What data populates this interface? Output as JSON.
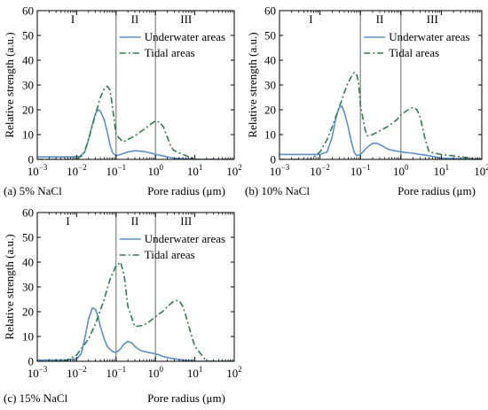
{
  "chart_data": [
    {
      "type": "line",
      "caption": "(a) 5% NaCl",
      "xlabel": "Pore radius (μm)",
      "ylabel": "Relative strength (a.u.)",
      "x_scale": "log",
      "xlim": [
        0.001,
        100
      ],
      "ylim": [
        0,
        60
      ],
      "x_ticks": [
        {
          "v": 0.001,
          "b": "10",
          "e": "−3"
        },
        {
          "v": 0.01,
          "b": "10",
          "e": "−2"
        },
        {
          "v": 0.1,
          "b": "10",
          "e": "−1"
        },
        {
          "v": 1,
          "b": "10",
          "e": "0"
        },
        {
          "v": 10,
          "b": "10",
          "e": "1"
        },
        {
          "v": 100,
          "b": "10",
          "e": "2"
        }
      ],
      "y_ticks": [
        0,
        10,
        20,
        30,
        40,
        50,
        60
      ],
      "dividers": [
        0.1,
        1
      ],
      "regions": [
        {
          "label": "I",
          "x": 0.008
        },
        {
          "label": "II",
          "x": 0.3
        },
        {
          "label": "III",
          "x": 6
        }
      ],
      "legend": "top-right",
      "series": [
        {
          "name": "Underwater areas",
          "color": "#5b8fc7",
          "dash": "solid",
          "x": [
            0.001,
            0.008,
            0.012,
            0.016,
            0.02,
            0.025,
            0.03,
            0.035,
            0.04,
            0.05,
            0.06,
            0.07,
            0.08,
            0.09,
            0.1,
            0.13,
            0.2,
            0.3,
            0.5,
            0.8,
            1,
            1.5,
            2,
            3,
            5,
            10,
            100
          ],
          "y": [
            1,
            1,
            1.2,
            3,
            8,
            14,
            18.5,
            20,
            19.5,
            16,
            11,
            6,
            3,
            2,
            1.5,
            2,
            3,
            3.5,
            3.2,
            2.5,
            2,
            1.5,
            1,
            0.5,
            0.3,
            0,
            0
          ]
        },
        {
          "name": "Tidal areas",
          "color": "#2e7d48",
          "dash": "dashdot",
          "x": [
            0.001,
            0.01,
            0.015,
            0.02,
            0.03,
            0.04,
            0.05,
            0.06,
            0.07,
            0.08,
            0.1,
            0.15,
            0.2,
            0.3,
            0.5,
            0.8,
            1,
            1.3,
            1.6,
            2,
            2.5,
            3,
            5,
            10,
            100
          ],
          "y": [
            0,
            0,
            2,
            8,
            18,
            25,
            28.5,
            29.5,
            28,
            22,
            10,
            7,
            8,
            9.5,
            12,
            14.5,
            15.5,
            15,
            13,
            9,
            5,
            3.5,
            2,
            0,
            0
          ]
        }
      ]
    },
    {
      "type": "line",
      "caption": "(b) 10% NaCl",
      "xlabel": "Pore radius (μm)",
      "ylabel": "Relative strength (a.u.)",
      "x_scale": "log",
      "xlim": [
        0.001,
        100
      ],
      "ylim": [
        0,
        60
      ],
      "x_ticks": [
        {
          "v": 0.001,
          "b": "10",
          "e": "−3"
        },
        {
          "v": 0.01,
          "b": "10",
          "e": "−2"
        },
        {
          "v": 0.1,
          "b": "10",
          "e": "−1"
        },
        {
          "v": 1,
          "b": "10",
          "e": "0"
        },
        {
          "v": 10,
          "b": "10",
          "e": "1"
        },
        {
          "v": 100,
          "b": "10",
          "e": "2"
        }
      ],
      "y_ticks": [
        0,
        10,
        20,
        30,
        40,
        50,
        60
      ],
      "dividers": [
        0.1,
        1
      ],
      "regions": [
        {
          "label": "I",
          "x": 0.006
        },
        {
          "label": "II",
          "x": 0.3
        },
        {
          "label": "III",
          "x": 6
        }
      ],
      "legend": "top-right",
      "series": [
        {
          "name": "Underwater areas",
          "color": "#5b8fc7",
          "dash": "solid",
          "x": [
            0.001,
            0.01,
            0.015,
            0.02,
            0.025,
            0.03,
            0.035,
            0.04,
            0.05,
            0.06,
            0.07,
            0.08,
            0.1,
            0.15,
            0.2,
            0.25,
            0.3,
            0.5,
            1,
            2,
            3,
            5,
            10,
            100
          ],
          "y": [
            2,
            2,
            3,
            9,
            17,
            21,
            21.5,
            19,
            13,
            7,
            3,
            1.5,
            2,
            5,
            6.5,
            6.5,
            6,
            4,
            3,
            2.5,
            2,
            1.5,
            0.5,
            0
          ]
        },
        {
          "name": "Tidal areas",
          "color": "#2e7d48",
          "dash": "dashdot",
          "x": [
            0.001,
            0.006,
            0.01,
            0.015,
            0.02,
            0.03,
            0.04,
            0.05,
            0.06,
            0.07,
            0.08,
            0.09,
            0.1,
            0.13,
            0.15,
            0.2,
            0.3,
            0.5,
            0.8,
            1,
            1.5,
            2,
            2.5,
            3,
            4,
            5,
            10,
            100
          ],
          "y": [
            0,
            0,
            3,
            8,
            13,
            21,
            27,
            31,
            33.5,
            35,
            34.5,
            31,
            22,
            12,
            9.5,
            10,
            11.5,
            13.5,
            16,
            18,
            20,
            21,
            20,
            17,
            8,
            3,
            2,
            0
          ]
        }
      ]
    },
    {
      "type": "line",
      "caption": "(c) 15% NaCl",
      "xlabel": "Pore radius (μm)",
      "ylabel": "Relative strength (a.u.)",
      "x_scale": "log",
      "xlim": [
        0.001,
        100
      ],
      "ylim": [
        0,
        60
      ],
      "x_ticks": [
        {
          "v": 0.001,
          "b": "10",
          "e": "−3"
        },
        {
          "v": 0.01,
          "b": "10",
          "e": "−2"
        },
        {
          "v": 0.1,
          "b": "10",
          "e": "−1"
        },
        {
          "v": 1,
          "b": "10",
          "e": "0"
        },
        {
          "v": 10,
          "b": "10",
          "e": "1"
        },
        {
          "v": 100,
          "b": "10",
          "e": "2"
        }
      ],
      "y_ticks": [
        0,
        10,
        20,
        30,
        40,
        50,
        60
      ],
      "dividers": [
        0.1,
        1
      ],
      "regions": [
        {
          "label": "I",
          "x": 0.006
        },
        {
          "label": "II",
          "x": 0.3
        },
        {
          "label": "III",
          "x": 6
        }
      ],
      "legend": "top-right",
      "series": [
        {
          "name": "Underwater areas",
          "color": "#5b8fc7",
          "dash": "solid",
          "x": [
            0.001,
            0.005,
            0.01,
            0.013,
            0.016,
            0.02,
            0.025,
            0.03,
            0.035,
            0.04,
            0.05,
            0.06,
            0.08,
            0.1,
            0.13,
            0.16,
            0.2,
            0.25,
            0.3,
            0.4,
            0.5,
            0.7,
            1,
            1.3,
            1.5,
            2,
            3,
            5,
            10,
            100
          ],
          "y": [
            0.5,
            0.5,
            1,
            3,
            9,
            17,
            21.5,
            21,
            18,
            14,
            9,
            6,
            4,
            3.5,
            5,
            7,
            8,
            7.5,
            6,
            4.5,
            4,
            3.5,
            3,
            2.5,
            2,
            1.5,
            1,
            0.5,
            0,
            0
          ]
        },
        {
          "name": "Tidal areas",
          "color": "#2e7d48",
          "dash": "dashdot",
          "x": [
            0.001,
            0.005,
            0.01,
            0.02,
            0.03,
            0.05,
            0.07,
            0.1,
            0.13,
            0.16,
            0.2,
            0.3,
            0.5,
            0.7,
            1,
            1.5,
            2,
            3,
            4,
            5,
            6,
            8,
            10,
            20,
            100
          ],
          "y": [
            0,
            0,
            2.5,
            9,
            15,
            25,
            33,
            38.5,
            40,
            35,
            22,
            14,
            14.5,
            16,
            18,
            20,
            22,
            24.5,
            24.5,
            22,
            18,
            11,
            6,
            0,
            0
          ]
        }
      ]
    }
  ]
}
